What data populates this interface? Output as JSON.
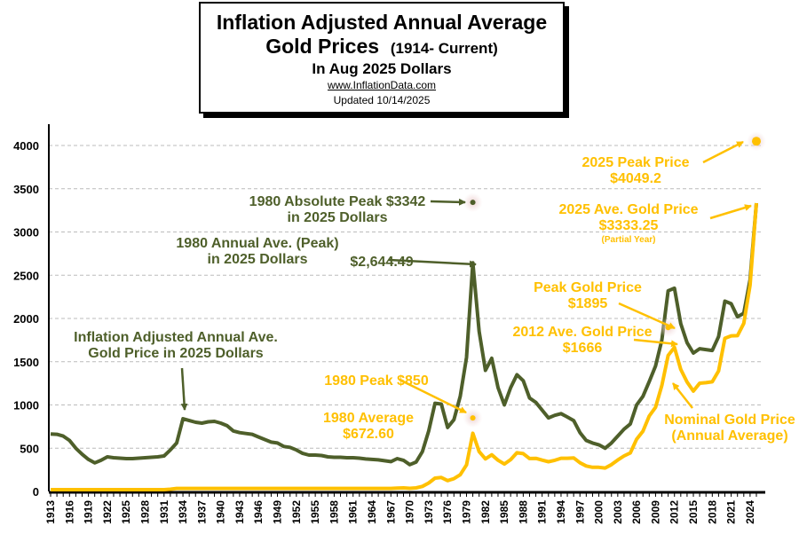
{
  "chart_data": {
    "type": "line",
    "title": {
      "line1": "Inflation Adjusted Annual Average",
      "line2": "Gold Prices",
      "line2_small": "(1914- Current)",
      "line3": "In Aug 2025 Dollars",
      "website": "www.InflationData.com",
      "updated": "Updated  10/14/2025"
    },
    "xlabel": "",
    "ylabel": "",
    "xlim": [
      1913,
      2025
    ],
    "ylim": [
      0,
      4000
    ],
    "yticks": [
      0,
      500,
      1000,
      1500,
      2000,
      2500,
      3000,
      3500,
      4000
    ],
    "xticks": [
      1913,
      1916,
      1919,
      1922,
      1925,
      1928,
      1931,
      1934,
      1937,
      1940,
      1943,
      1946,
      1949,
      1952,
      1955,
      1958,
      1961,
      1964,
      1967,
      1970,
      1973,
      1976,
      1979,
      1982,
      1985,
      1988,
      1991,
      1994,
      1997,
      2000,
      2003,
      2006,
      2009,
      2012,
      2015,
      2018,
      2021,
      2024
    ],
    "grid": "horizontal dashed",
    "colors": {
      "real": "#4e5f2a",
      "nominal": "#ffc000",
      "axis": "#000000"
    },
    "x_start": 1913,
    "series": [
      {
        "key": "real",
        "values": [
          665,
          660,
          640,
          590,
          500,
          430,
          370,
          330,
          360,
          400,
          390,
          385,
          380,
          380,
          385,
          390,
          395,
          400,
          410,
          480,
          560,
          840,
          820,
          800,
          790,
          805,
          810,
          790,
          760,
          700,
          680,
          670,
          660,
          630,
          600,
          570,
          560,
          520,
          510,
          480,
          440,
          420,
          420,
          415,
          400,
          395,
          395,
          390,
          390,
          385,
          375,
          370,
          365,
          355,
          345,
          380,
          360,
          310,
          340,
          460,
          700,
          1020,
          1010,
          740,
          830,
          1100,
          1550,
          2644.49,
          1850,
          1400,
          1540,
          1200,
          1000,
          1200,
          1350,
          1280,
          1080,
          1030,
          940,
          850,
          880,
          900,
          860,
          820,
          680,
          590,
          560,
          540,
          500,
          560,
          640,
          720,
          780,
          1000,
          1100,
          1270,
          1450,
          1750,
          2320,
          2350,
          1940,
          1720,
          1600,
          1650,
          1640,
          1630,
          1790,
          2200,
          2170,
          2020,
          2060,
          2450,
          3333.25
        ]
      },
      {
        "key": "nominal",
        "values": [
          20.67,
          20.67,
          20.67,
          20.67,
          20.67,
          20.67,
          20.67,
          20.67,
          20.67,
          20.67,
          20.67,
          20.67,
          20.67,
          20.67,
          20.67,
          20.67,
          20.67,
          20.67,
          20.67,
          25.56,
          35,
          35,
          35,
          35,
          35,
          35,
          35,
          35,
          35,
          35,
          35,
          35,
          35,
          35,
          35,
          35,
          35,
          35,
          35,
          35,
          35,
          35,
          35,
          35,
          35,
          35,
          35,
          35,
          35,
          35,
          35,
          35,
          35,
          35,
          35,
          39,
          41,
          36,
          41,
          58,
          97,
          154,
          161,
          125,
          148,
          193,
          307,
          672.6,
          460,
          376,
          424,
          361,
          317,
          368,
          447,
          437,
          381,
          383,
          362,
          344,
          360,
          384,
          384,
          388,
          331,
          294,
          279,
          279,
          271,
          310,
          363,
          410,
          445,
          604,
          696,
          872,
          972,
          1225,
          1572,
          1666,
          1411,
          1266,
          1160,
          1251,
          1257,
          1268,
          1393,
          1770,
          1799,
          1801,
          1943,
          2386,
          3333.25
        ]
      }
    ],
    "points": [
      {
        "key": "abs_peak_1980",
        "x": 1980,
        "y": 3342,
        "color": "#4e5f2a"
      },
      {
        "key": "peak_1980_nominal",
        "x": 1980,
        "y": 850,
        "color": "#ffc000"
      },
      {
        "key": "peak_gold_1895",
        "x": 2011,
        "y": 1895,
        "color": "#ffc000"
      },
      {
        "key": "peak_2025",
        "x": 2025,
        "y": 4049.2,
        "color": "#ffc000"
      }
    ],
    "annotations": [
      {
        "key": "a1",
        "lines": [
          "1980 Absolute Peak $3342",
          "in 2025 Dollars"
        ],
        "color": "#4e5f2a"
      },
      {
        "key": "a2",
        "lines": [
          "1980 Annual Ave. (Peak)",
          "in 2025 Dollars"
        ],
        "color": "#4e5f2a"
      },
      {
        "key": "a3",
        "lines": [
          "$2,644.49"
        ],
        "color": "#4e5f2a"
      },
      {
        "key": "a4",
        "lines": [
          "Inflation Adjusted Annual Ave.",
          "Gold Price in 2025 Dollars"
        ],
        "color": "#4e5f2a"
      },
      {
        "key": "a5",
        "lines": [
          "1980 Peak $850"
        ],
        "color": "#ffc000"
      },
      {
        "key": "a6",
        "lines": [
          "1980 Average",
          "$672.60"
        ],
        "color": "#ffc000"
      },
      {
        "key": "a7",
        "lines": [
          "2025 Peak Price",
          "$4049.2"
        ],
        "color": "#ffc000"
      },
      {
        "key": "a8",
        "lines": [
          "2025 Ave. Gold Price",
          "$3333.25"
        ],
        "color": "#ffc000"
      },
      {
        "key": "a8b",
        "lines": [
          "(Partial Year)"
        ],
        "color": "#ffc000"
      },
      {
        "key": "a9",
        "lines": [
          "Peak Gold Price",
          "$1895"
        ],
        "color": "#ffc000"
      },
      {
        "key": "a10",
        "lines": [
          "2012 Ave. Gold Price",
          "$1666"
        ],
        "color": "#ffc000"
      },
      {
        "key": "a11",
        "lines": [
          "Nominal Gold Price",
          "(Annual Average)"
        ],
        "color": "#ffc000"
      }
    ]
  }
}
